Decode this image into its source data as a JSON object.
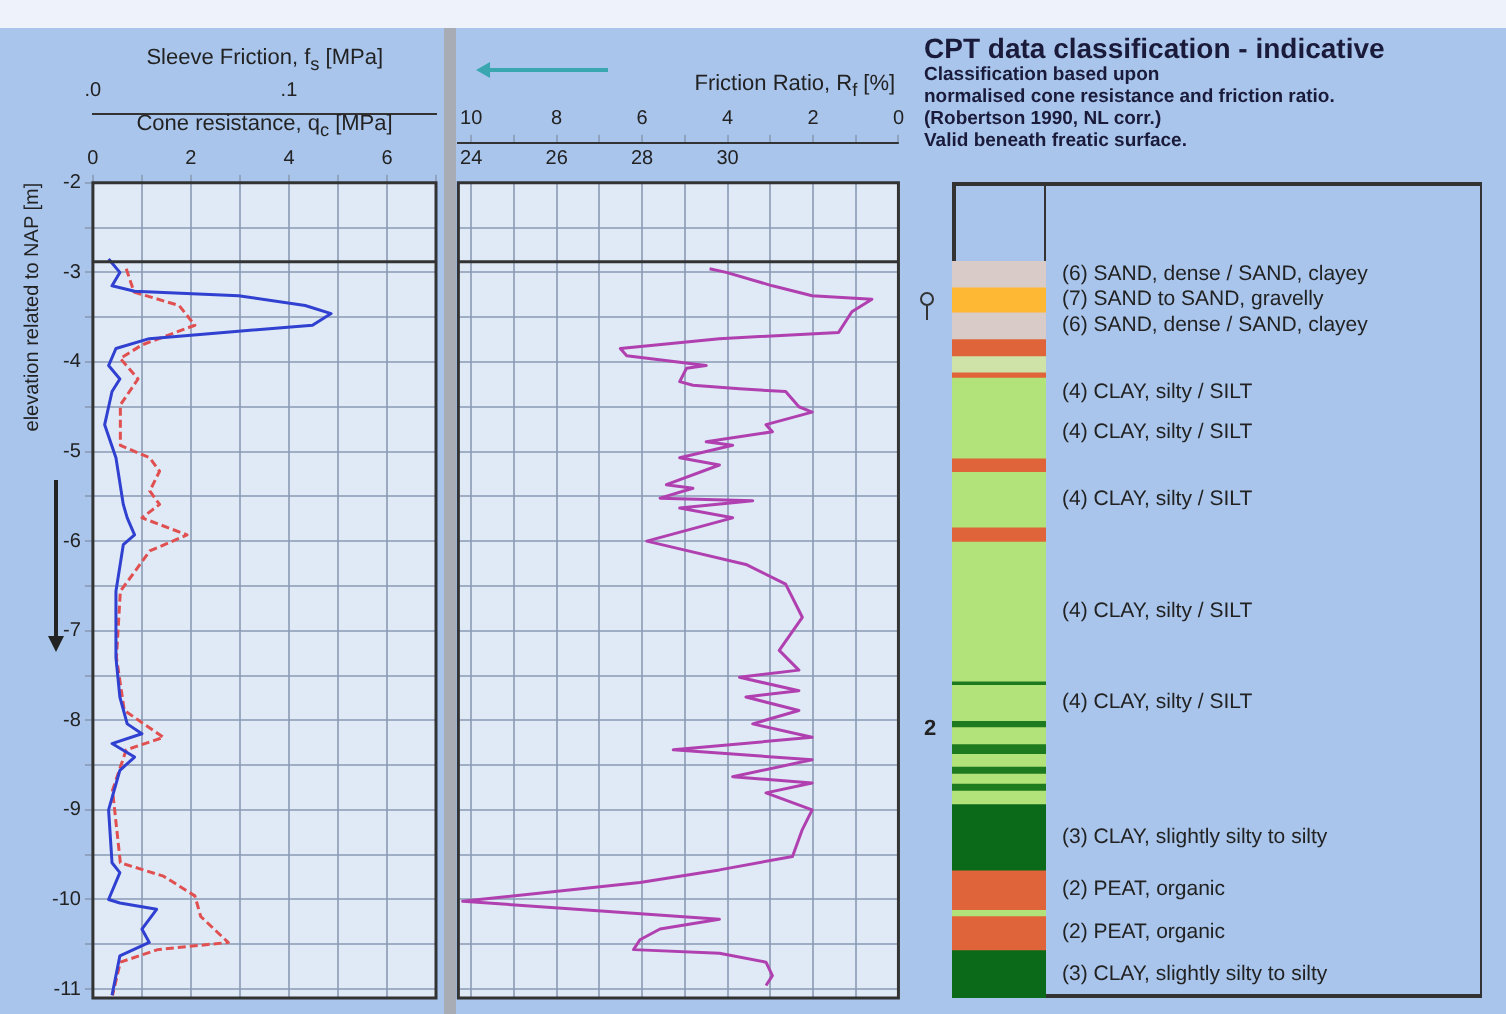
{
  "chart_data": [
    {
      "type": "line",
      "xlabel": "Cone resistance, q$_{c}$ [MPa]",
      "x2label": "Sleeve Friction, f$_{s}$ [MPa]",
      "ylabel": "elevation related to NAP [m]",
      "xlim": [
        0,
        7
      ],
      "xticks": [
        0,
        {
          "value": 1,
          "label": null
        },
        2,
        {
          "value": 3,
          "label": null
        },
        4,
        {
          "value": 5,
          "label": null
        },
        6,
        {
          "value": 7,
          "label": null
        }
      ],
      "x2lim": [
        0,
        0.175
      ],
      "x2ticks": [
        {
          "value": 0,
          "label": ".0"
        },
        {
          "value": 0.1,
          "label": ".1"
        }
      ],
      "ylim": [
        -11.1,
        -2
      ],
      "yticks": [
        -2,
        {
          "value": -2.5,
          "label": null
        },
        -3,
        {
          "value": -3.5,
          "label": null
        },
        -4,
        {
          "value": -4.5,
          "label": null
        },
        -5,
        {
          "value": -5.5,
          "label": null
        },
        -6,
        {
          "value": -6.5,
          "label": null
        },
        -7,
        {
          "value": -7.5,
          "label": null
        },
        -8,
        {
          "value": -8.5,
          "label": null
        },
        -9,
        {
          "value": -9.5,
          "label": null
        },
        -10,
        {
          "value": -10.5,
          "label": null
        },
        -11
      ],
      "grid": true,
      "marker": "none",
      "ref_lines": [
        {
          "axis": "y",
          "value": -2.88,
          "color": "#333333"
        }
      ],
      "series": [
        {
          "color": "#3040d0",
          "line_style": "solid",
          "x": [
            0.32,
            0.55,
            0.39,
            0.85,
            2.97,
            4.33,
            4.86,
            4.48,
            2.67,
            1.15,
            0.47,
            0.32,
            0.55,
            0.39,
            0.24,
            0.47,
            0.62,
            0.7,
            0.85,
            0.62,
            0.47,
            0.47,
            0.55,
            0.7,
            1.0,
            0.39,
            0.85,
            0.55,
            0.32,
            0.39,
            0.55,
            0.32,
            0.55,
            1.3,
            1.0,
            1.15,
            0.55,
            0.39
          ],
          "values": [
            -2.85,
            -3.0,
            -3.15,
            -3.21,
            -3.26,
            -3.37,
            -3.46,
            -3.59,
            -3.67,
            -3.74,
            -3.85,
            -4.04,
            -4.19,
            -4.33,
            -4.7,
            -5.07,
            -5.59,
            -5.74,
            -5.93,
            -6.04,
            -6.56,
            -7.3,
            -7.74,
            -8.04,
            -8.15,
            -8.26,
            -8.41,
            -8.56,
            -9.0,
            -9.59,
            -9.7,
            -10.0,
            -10.04,
            -10.11,
            -10.33,
            -10.48,
            -10.63,
            -11.07
          ]
        },
        {
          "color": "#e05050",
          "line_style": "dashed",
          "axis": "x2",
          "x": [
            0.017,
            0.021,
            0.044,
            0.052,
            0.025,
            0.014,
            0.023,
            0.014,
            0.014,
            0.029,
            0.034,
            0.029,
            0.034,
            0.025,
            0.048,
            0.029,
            0.014,
            0.012,
            0.016,
            0.036,
            0.017,
            0.01,
            0.014,
            0.036,
            0.052,
            0.055,
            0.069,
            0.033,
            0.014,
            0.01
          ],
          "values": [
            -2.96,
            -3.22,
            -3.37,
            -3.59,
            -3.81,
            -3.96,
            -4.19,
            -4.48,
            -4.93,
            -5.07,
            -5.22,
            -5.44,
            -5.59,
            -5.74,
            -5.93,
            -6.11,
            -6.56,
            -7.3,
            -7.89,
            -8.19,
            -8.33,
            -8.78,
            -9.59,
            -9.74,
            -9.96,
            -10.19,
            -10.48,
            -10.56,
            -10.7,
            -11.07
          ]
        }
      ]
    },
    {
      "type": "line",
      "xlabel": "Friction Ratio, R$_{f}$ [%]",
      "xlim": [
        10.3,
        0
      ],
      "xticks": [
        10,
        {
          "value": 9,
          "label": null
        },
        8,
        {
          "value": 7,
          "label": null
        },
        6,
        {
          "value": 5,
          "label": null
        },
        4,
        {
          "value": 3,
          "label": null
        },
        2,
        {
          "value": 1,
          "label": null
        },
        0
      ],
      "x2lim": [
        23.7,
        34
      ],
      "x2ticks": [
        24,
        26,
        28,
        30
      ],
      "ylim": [
        -11.1,
        -2
      ],
      "yticks": [
        -2,
        -2.5,
        -3,
        -3.5,
        -4,
        -4.5,
        -5,
        -5.5,
        -6,
        -6.5,
        -7,
        -7.5,
        -8,
        -8.5,
        -9,
        -9.5,
        -10,
        -10.5,
        -11
      ],
      "grid": true,
      "tick_labels": "x",
      "marker": "none",
      "ref_lines": [
        {
          "axis": "y",
          "value": -2.88,
          "color": "#333333"
        }
      ],
      "series": [
        {
          "color": "#b040b0",
          "line_style": "solid",
          "x": [
            4.42,
            4.03,
            2.95,
            2.02,
            0.62,
            1.09,
            1.4,
            4.19,
            6.51,
            6.36,
            4.5,
            4.96,
            5.12,
            4.81,
            3.72,
            2.64,
            2.33,
            2.02,
            3.1,
            2.95,
            4.5,
            3.88,
            5.12,
            4.19,
            5.43,
            4.81,
            5.58,
            3.41,
            5.12,
            3.88,
            5.89,
            5.27,
            3.57,
            2.64,
            2.25,
            2.79,
            2.33,
            3.72,
            2.33,
            3.57,
            2.33,
            3.41,
            2.02,
            5.27,
            2.02,
            3.88,
            2.02,
            3.1,
            2.02,
            2.25,
            2.48,
            4.19,
            6.05,
            10.2,
            4.19,
            5.58,
            6.05,
            6.2,
            4.19,
            3.1,
            2.95,
            3.1
          ],
          "values": [
            -2.96,
            -3.0,
            -3.15,
            -3.26,
            -3.3,
            -3.44,
            -3.67,
            -3.74,
            -3.85,
            -3.93,
            -4.04,
            -4.07,
            -4.22,
            -4.26,
            -4.3,
            -4.33,
            -4.5,
            -4.56,
            -4.7,
            -4.78,
            -4.89,
            -4.93,
            -5.07,
            -5.15,
            -5.37,
            -5.41,
            -5.52,
            -5.55,
            -5.63,
            -5.74,
            -6.0,
            -6.07,
            -6.26,
            -6.48,
            -6.85,
            -7.22,
            -7.44,
            -7.52,
            -7.67,
            -7.74,
            -7.89,
            -8.04,
            -8.19,
            -8.33,
            -8.44,
            -8.63,
            -8.7,
            -8.81,
            -9.0,
            -9.22,
            -9.52,
            -9.67,
            -9.81,
            -10.02,
            -10.22,
            -10.33,
            -10.45,
            -10.56,
            -10.6,
            -10.7,
            -10.85,
            -10.96
          ]
        }
      ]
    },
    {
      "type": "bar",
      "title": "CPT data classification - indicative",
      "subtitle": "Classification based upon\nnormalised cone resistance and friction ratio.\n(Robertson 1990, NL corr.)\nValid beneath freatic surface.",
      "ylim": [
        -11.1,
        -2
      ],
      "tick_labels": false,
      "categories": [
        null
      ],
      "annotations": [
        "2"
      ],
      "series": [
        {
          "name": "(6) SAND, dense / SAND, clayey",
          "color": "#d9cbc8",
          "base": [
            -2.88
          ],
          "values": [
            -0.28
          ]
        },
        {
          "name": "(7) SAND to SAND, gravelly",
          "color": "#ffb833",
          "base": [
            -3.16
          ],
          "values": [
            -0.28
          ]
        },
        {
          "name": "(6) SAND, dense / SAND, clayey",
          "color": "#d9cbc8",
          "base": [
            -3.44
          ],
          "values": [
            -0.3
          ]
        },
        {
          "color": "#e0643a",
          "base": [
            -3.74
          ],
          "values": [
            -0.19
          ]
        },
        {
          "color": "#cfe3a8",
          "base": [
            -3.93
          ],
          "values": [
            -0.18
          ]
        },
        {
          "color": "#e0643a",
          "base": [
            -4.11
          ],
          "values": [
            -0.06
          ]
        },
        {
          "name": "(4) CLAY, silty / SILT",
          "color": "#b2e27a",
          "base": [
            -4.17
          ],
          "values": [
            -0.33
          ]
        },
        {
          "name": "(4) CLAY, silty / SILT",
          "color": "#b2e27a",
          "base": [
            -4.5
          ],
          "values": [
            -0.57
          ]
        },
        {
          "color": "#e0643a",
          "base": [
            -5.07
          ],
          "values": [
            -0.15
          ]
        },
        {
          "name": "(4) CLAY, silty / SILT",
          "color": "#b2e27a",
          "base": [
            -5.22
          ],
          "values": [
            -0.62
          ]
        },
        {
          "color": "#e0643a",
          "base": [
            -5.84
          ],
          "values": [
            -0.16
          ]
        },
        {
          "name": "(4) CLAY, silty / SILT",
          "color": "#b2e27a",
          "base": [
            -6.0
          ],
          "values": [
            -1.56
          ]
        },
        {
          "color": "#1e7a1e",
          "base": [
            -7.56
          ],
          "values": [
            -0.04
          ]
        },
        {
          "name": "(4) CLAY, silty / SILT",
          "color": "#b2e27a",
          "base": [
            -7.6
          ],
          "values": [
            -0.4
          ]
        },
        {
          "color": "#1e7a1e",
          "base": [
            -8.0
          ],
          "values": [
            -0.07
          ]
        },
        {
          "color": "#b2e27a",
          "base": [
            -8.07
          ],
          "values": [
            -0.19
          ]
        },
        {
          "color": "#1e7a1e",
          "base": [
            -8.26
          ],
          "values": [
            -0.11
          ]
        },
        {
          "color": "#b2e27a",
          "base": [
            -8.37
          ],
          "values": [
            -0.14
          ]
        },
        {
          "color": "#1e7a1e",
          "base": [
            -8.51
          ],
          "values": [
            -0.08
          ]
        },
        {
          "color": "#b2e27a",
          "base": [
            -8.59
          ],
          "values": [
            -0.11
          ]
        },
        {
          "color": "#1e7a1e",
          "base": [
            -8.7
          ],
          "values": [
            -0.08
          ]
        },
        {
          "color": "#b2e27a",
          "base": [
            -8.78
          ],
          "values": [
            -0.15
          ]
        },
        {
          "name": "(3) CLAY, slightly silty to silty",
          "color": "#0a6a1a",
          "base": [
            -8.93
          ],
          "values": [
            -0.74
          ]
        },
        {
          "name": "(2) PEAT, organic",
          "color": "#e0643a",
          "base": [
            -9.67
          ],
          "values": [
            -0.44
          ]
        },
        {
          "color": "#b2e27a",
          "base": [
            -10.11
          ],
          "values": [
            -0.07
          ]
        },
        {
          "name": "(2) PEAT, organic",
          "color": "#e0643a",
          "base": [
            -10.18
          ],
          "values": [
            -0.38
          ]
        },
        {
          "name": "(3) CLAY, slightly silty to silty",
          "color": "#0a6a1a",
          "base": [
            -10.56
          ],
          "values": [
            -0.54
          ]
        }
      ]
    }
  ]
}
